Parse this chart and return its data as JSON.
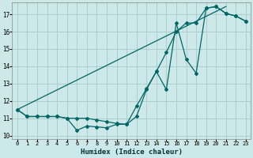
{
  "xlabel": "Humidex (Indice chaleur)",
  "xlim": [
    -0.5,
    23.5
  ],
  "ylim": [
    9.8,
    17.7
  ],
  "xticks": [
    0,
    1,
    2,
    3,
    4,
    5,
    6,
    7,
    8,
    9,
    10,
    11,
    12,
    13,
    14,
    15,
    16,
    17,
    18,
    19,
    20,
    21,
    22,
    23
  ],
  "yticks": [
    10,
    11,
    12,
    13,
    14,
    15,
    16,
    17
  ],
  "background_color": "#cde8e8",
  "grid_color": "#aecece",
  "line_color": "#006666",
  "line1_x": [
    0,
    1,
    2,
    3,
    4,
    5,
    6,
    7,
    8,
    9,
    10,
    11,
    12,
    13,
    14,
    15,
    16,
    17,
    18,
    19,
    20,
    21,
    22,
    23
  ],
  "line1_y": [
    11.5,
    11.1,
    11.1,
    11.1,
    11.1,
    11.0,
    10.3,
    10.55,
    10.5,
    10.45,
    10.65,
    10.65,
    11.1,
    12.65,
    13.7,
    12.65,
    16.5,
    14.4,
    13.6,
    17.35,
    17.45,
    17.05,
    16.9,
    16.6
  ],
  "line2_x": [
    0,
    1,
    2,
    3,
    4,
    5,
    6,
    7,
    8,
    9,
    10,
    11,
    12,
    13,
    14,
    15,
    16,
    17,
    18,
    19,
    20,
    21,
    22,
    23
  ],
  "line2_y": [
    11.5,
    11.1,
    11.1,
    11.1,
    11.1,
    11.0,
    11.0,
    11.0,
    10.9,
    10.8,
    10.7,
    10.65,
    11.7,
    12.7,
    13.7,
    14.8,
    16.0,
    16.5,
    16.5,
    17.35,
    17.45,
    17.05,
    16.9,
    16.6
  ],
  "line3_x": [
    0,
    21
  ],
  "line3_y": [
    11.5,
    17.45
  ]
}
